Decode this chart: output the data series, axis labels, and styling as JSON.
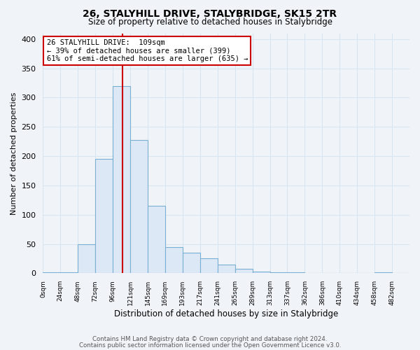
{
  "title": "26, STALYHILL DRIVE, STALYBRIDGE, SK15 2TR",
  "subtitle": "Size of property relative to detached houses in Stalybridge",
  "xlabel": "Distribution of detached houses by size in Stalybridge",
  "ylabel": "Number of detached properties",
  "bar_color": "#dce8f5",
  "bar_edge_color": "#7aafd4",
  "background_color": "#f0f4f8",
  "grid_color": "#d8e4f0",
  "vline_value": 109,
  "vline_color": "#cc0000",
  "annotation_title": "26 STALYHILL DRIVE:  109sqm",
  "annotation_line1": "← 39% of detached houses are smaller (399)",
  "annotation_line2": "61% of semi-detached houses are larger (635) →",
  "box_edge_color": "#cc0000",
  "bin_edges": [
    0,
    24,
    48,
    72,
    96,
    120,
    144,
    168,
    192,
    216,
    240,
    264,
    288,
    312,
    336,
    360,
    384,
    408,
    432,
    456,
    480,
    504
  ],
  "bin_labels": [
    "0sqm",
    "24sqm",
    "48sqm",
    "72sqm",
    "96sqm",
    "121sqm",
    "145sqm",
    "169sqm",
    "193sqm",
    "217sqm",
    "241sqm",
    "265sqm",
    "289sqm",
    "313sqm",
    "337sqm",
    "362sqm",
    "386sqm",
    "410sqm",
    "434sqm",
    "458sqm",
    "482sqm"
  ],
  "counts": [
    2,
    2,
    50,
    195,
    320,
    228,
    115,
    45,
    35,
    25,
    15,
    7,
    3,
    2,
    2,
    1,
    0,
    0,
    0,
    2,
    0
  ],
  "ylim": [
    0,
    410
  ],
  "yticks": [
    0,
    50,
    100,
    150,
    200,
    250,
    300,
    350,
    400
  ],
  "footer1": "Contains HM Land Registry data © Crown copyright and database right 2024.",
  "footer2": "Contains public sector information licensed under the Open Government Licence v3.0."
}
